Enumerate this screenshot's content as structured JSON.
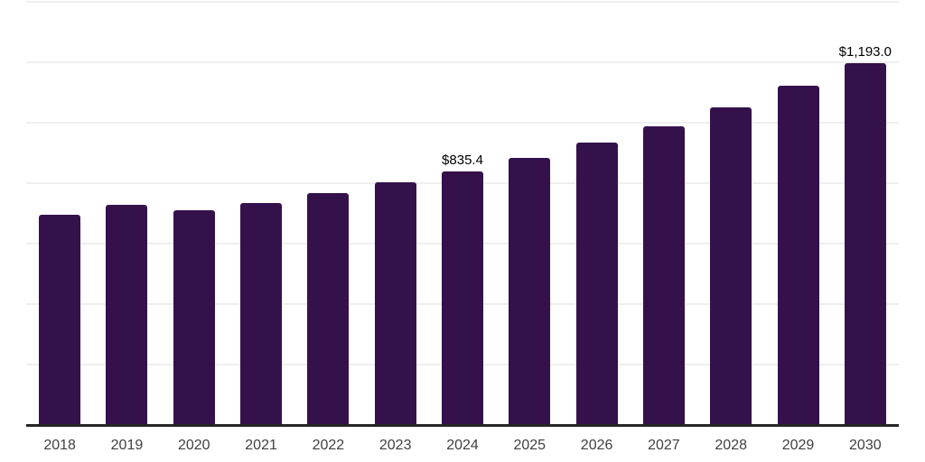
{
  "chart_data": {
    "type": "bar",
    "title": "",
    "xlabel": "",
    "ylabel": "",
    "categories": [
      "2018",
      "2019",
      "2020",
      "2021",
      "2022",
      "2023",
      "2024",
      "2025",
      "2026",
      "2027",
      "2028",
      "2029",
      "2030"
    ],
    "values": [
      694,
      724,
      706,
      732,
      764,
      799,
      835.4,
      882,
      930,
      986,
      1048,
      1119,
      1193.0
    ],
    "value_labels": [
      "",
      "",
      "",
      "",
      "",
      "",
      "$835.4",
      "",
      "",
      "",
      "",
      "",
      "$1,193.0"
    ],
    "ylim": [
      0,
      1400
    ],
    "grid_step": 200,
    "grid": true,
    "legend": false,
    "y_axis_tick_labels_visible": false
  },
  "colors": {
    "bar": "#35114C",
    "axis_line": "#252525",
    "gridline": "#efefef",
    "tick_label": "#404040",
    "data_label": "#000000",
    "background": "#ffffff"
  }
}
